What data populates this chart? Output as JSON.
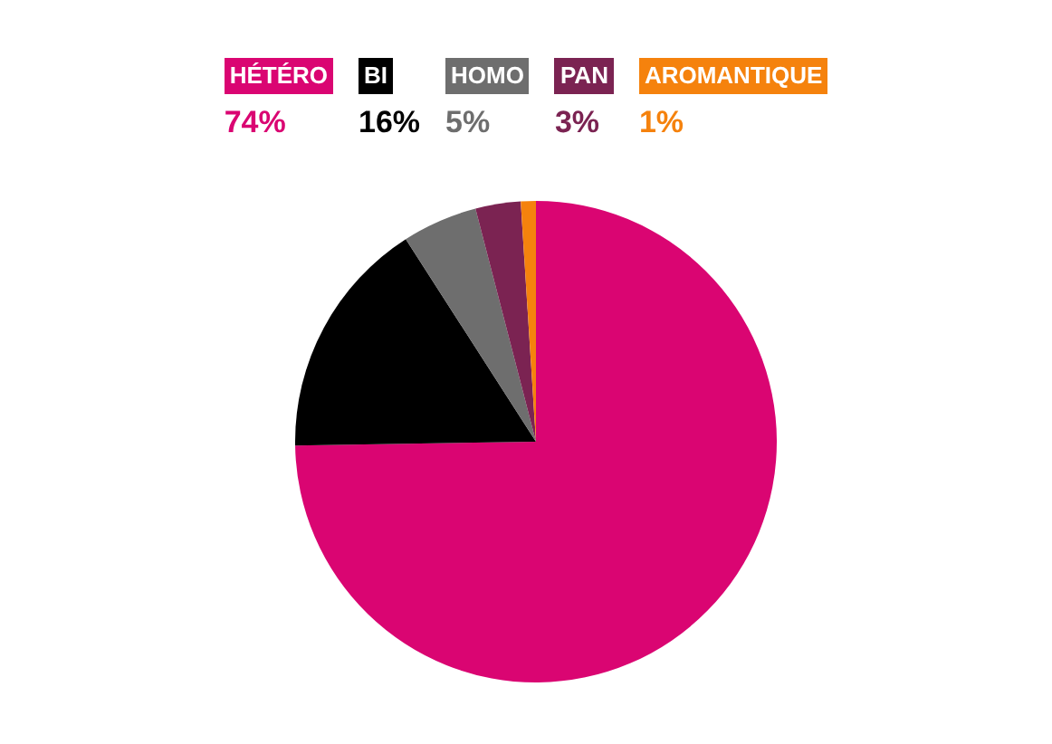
{
  "chart_data": {
    "type": "pie",
    "categories": [
      "HÉTÉRO",
      "BI",
      "HOMO",
      "PAN",
      "AROMANTIQUE"
    ],
    "values": [
      74,
      16,
      5,
      3,
      1
    ],
    "colors": [
      "#da0572",
      "#000000",
      "#6e6e6e",
      "#7b2352",
      "#f5820d"
    ],
    "value_labels": [
      "74%",
      "16%",
      "5%",
      "3%",
      "1%"
    ],
    "legend": "top"
  }
}
